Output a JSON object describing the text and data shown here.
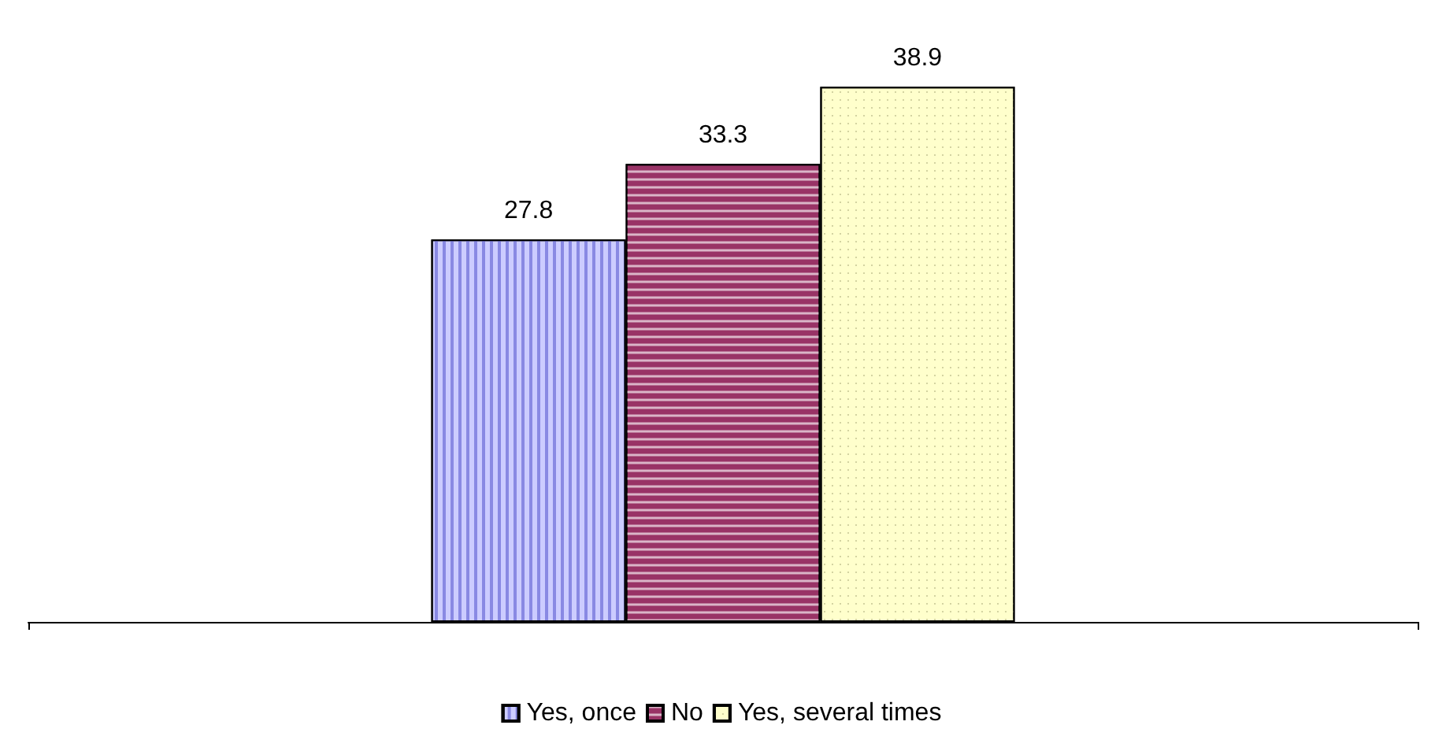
{
  "chart_data": {
    "type": "bar",
    "categories": [
      null
    ],
    "series": [
      {
        "name": "Yes, once",
        "color": "#ccccff",
        "values": [
          27.8
        ]
      },
      {
        "name": "No",
        "color": "#993366",
        "values": [
          33.3
        ]
      },
      {
        "name": "Yes, several times",
        "color": "#ffffcc",
        "values": [
          38.9
        ]
      }
    ],
    "data_labels": true,
    "legend": "bottom"
  }
}
